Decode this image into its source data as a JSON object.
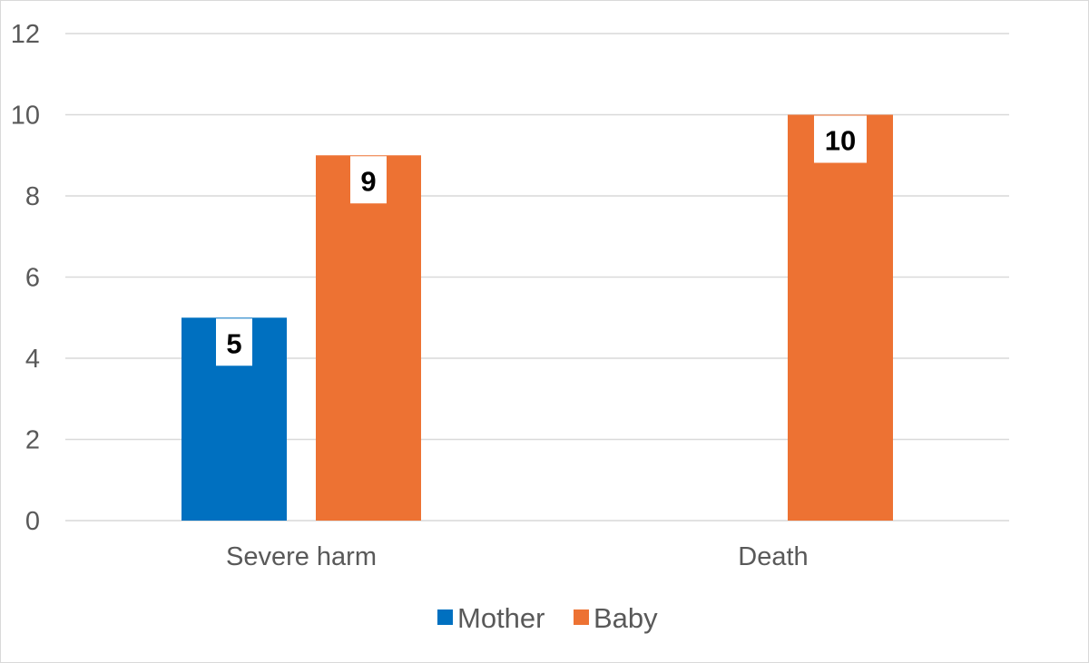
{
  "chart_data": {
    "type": "bar",
    "categories": [
      "Severe harm",
      "Death"
    ],
    "series": [
      {
        "name": "Mother",
        "values": [
          5,
          0
        ],
        "color": "#0070c0"
      },
      {
        "name": "Baby",
        "values": [
          9,
          10
        ],
        "color": "#ed7233"
      }
    ],
    "title": "",
    "xlabel": "",
    "ylabel": "",
    "ylim": [
      0,
      12
    ],
    "yticks": [
      0,
      2,
      4,
      6,
      8,
      10,
      12
    ],
    "grid": true,
    "legend": "bottom-center",
    "data_labels": [
      [
        "5",
        ""
      ],
      [
        "9",
        "10"
      ]
    ]
  }
}
